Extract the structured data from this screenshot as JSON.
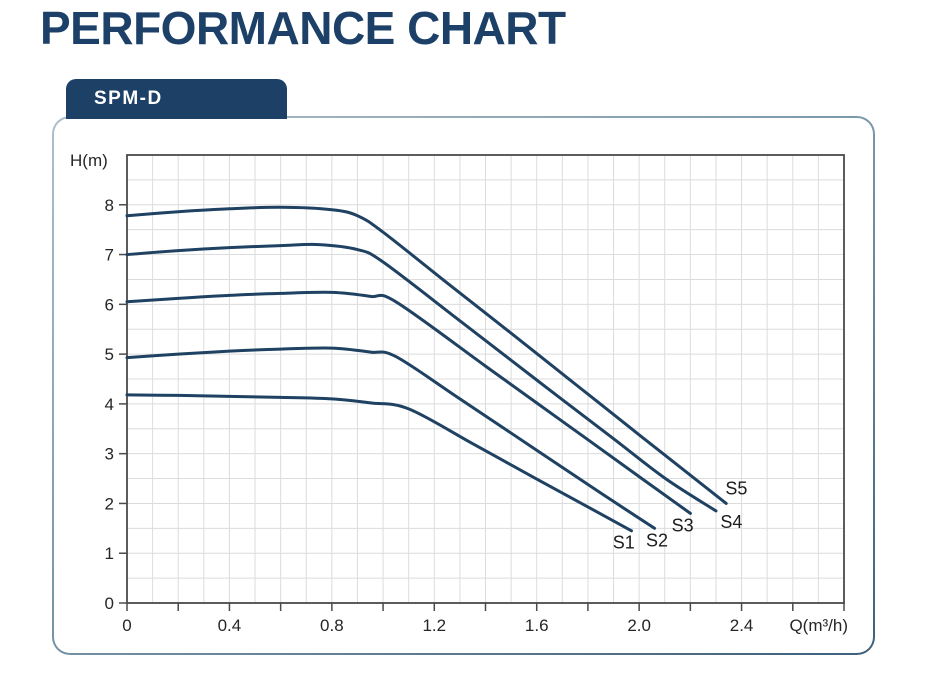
{
  "title": "PERFORMANCE CHART",
  "tab": {
    "label": "SPM-D"
  },
  "colors": {
    "brand_navy": "#1d4068",
    "tab_bg": "#1d4066",
    "curve": "#1f4162",
    "grid": "#dcdcdc",
    "plot_border": "#4a4a4a",
    "tick": "#4a4a4a",
    "text_dark": "#262626",
    "card_border_light": "#aebfca",
    "card_border_dark": "#3f607b"
  },
  "chart_data": {
    "type": "line",
    "title": "",
    "xlabel": "Q(m³/h)",
    "ylabel": "H(m)",
    "xlim": [
      0,
      2.8
    ],
    "ylim": [
      0,
      9
    ],
    "grid": true,
    "x_grid_step": 0.1,
    "y_grid_step": 0.5,
    "x_tick_step": 0.2,
    "y_tick_step": 1,
    "legend_position": "inline-labels-at-curve-ends",
    "x_tick_labels": [
      {
        "v": 0.0,
        "t": "0"
      },
      {
        "v": 0.4,
        "t": "0.4"
      },
      {
        "v": 0.8,
        "t": "0.8"
      },
      {
        "v": 1.2,
        "t": "1.2"
      },
      {
        "v": 1.6,
        "t": "1.6"
      },
      {
        "v": 2.0,
        "t": "2.0"
      },
      {
        "v": 2.4,
        "t": "2.4"
      }
    ],
    "y_tick_labels": [
      {
        "v": 0,
        "t": "0"
      },
      {
        "v": 1,
        "t": "1"
      },
      {
        "v": 2,
        "t": "2"
      },
      {
        "v": 3,
        "t": "3"
      },
      {
        "v": 4,
        "t": "4"
      },
      {
        "v": 5,
        "t": "5"
      },
      {
        "v": 6,
        "t": "6"
      },
      {
        "v": 7,
        "t": "7"
      },
      {
        "v": 8,
        "t": "8"
      }
    ],
    "series": [
      {
        "name": "S1",
        "label_pos": {
          "q": 1.94,
          "h": 1.22
        },
        "points": [
          [
            0,
            4.18
          ],
          [
            0.2,
            4.17
          ],
          [
            0.4,
            4.15
          ],
          [
            0.6,
            4.13
          ],
          [
            0.8,
            4.1
          ],
          [
            0.95,
            4.02
          ],
          [
            1.1,
            3.9
          ],
          [
            1.35,
            3.2
          ],
          [
            1.6,
            2.49
          ],
          [
            1.8,
            1.93
          ],
          [
            1.97,
            1.45
          ]
        ]
      },
      {
        "name": "S2",
        "label_pos": {
          "q": 2.07,
          "h": 1.26
        },
        "points": [
          [
            0,
            4.93
          ],
          [
            0.2,
            5.0
          ],
          [
            0.4,
            5.06
          ],
          [
            0.6,
            5.1
          ],
          [
            0.8,
            5.12
          ],
          [
            0.95,
            5.04
          ],
          [
            1.05,
            4.95
          ],
          [
            1.3,
            4.1
          ],
          [
            1.6,
            3.07
          ],
          [
            1.85,
            2.21
          ],
          [
            2.06,
            1.5
          ]
        ]
      },
      {
        "name": "S3",
        "label_pos": {
          "q": 2.17,
          "h": 1.56
        },
        "points": [
          [
            0,
            6.05
          ],
          [
            0.2,
            6.12
          ],
          [
            0.4,
            6.18
          ],
          [
            0.6,
            6.22
          ],
          [
            0.8,
            6.24
          ],
          [
            0.95,
            6.16
          ],
          [
            1.05,
            6.05
          ],
          [
            1.4,
            4.76
          ],
          [
            1.7,
            3.65
          ],
          [
            2.0,
            2.54
          ],
          [
            2.2,
            1.8
          ]
        ]
      },
      {
        "name": "S4",
        "label_pos": {
          "q": 2.36,
          "h": 1.63
        },
        "points": [
          [
            0,
            7.0
          ],
          [
            0.2,
            7.08
          ],
          [
            0.4,
            7.14
          ],
          [
            0.6,
            7.18
          ],
          [
            0.75,
            7.2
          ],
          [
            0.9,
            7.1
          ],
          [
            1.0,
            6.85
          ],
          [
            1.3,
            5.67
          ],
          [
            1.6,
            4.48
          ],
          [
            1.9,
            3.3
          ],
          [
            2.1,
            2.51
          ],
          [
            2.3,
            1.85
          ]
        ]
      },
      {
        "name": "S5",
        "label_pos": {
          "q": 2.38,
          "h": 2.3
        },
        "points": [
          [
            0,
            7.78
          ],
          [
            0.2,
            7.86
          ],
          [
            0.4,
            7.92
          ],
          [
            0.6,
            7.95
          ],
          [
            0.8,
            7.9
          ],
          [
            0.9,
            7.78
          ],
          [
            1.0,
            7.45
          ],
          [
            1.25,
            6.43
          ],
          [
            1.5,
            5.42
          ],
          [
            1.75,
            4.4
          ],
          [
            2.0,
            3.38
          ],
          [
            2.34,
            2.0
          ]
        ]
      }
    ]
  }
}
